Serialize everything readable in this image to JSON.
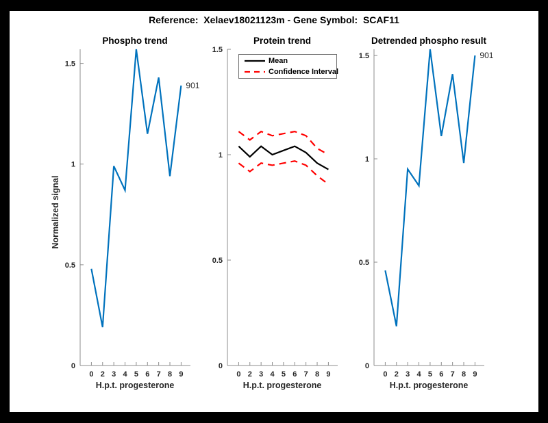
{
  "figure": {
    "title": "Reference:  Xelaev18021123m - Gene Symbol:  SCAF11",
    "background_color": "#ffffff",
    "frame_color": "#000000",
    "spine_color": "#8c8c8c",
    "text_color": "#262626"
  },
  "chart_data": [
    {
      "type": "line",
      "title": "Phospho trend",
      "xlabel": "H.p.t. progesterone",
      "ylabel": "Normalized signal",
      "categories": [
        "0",
        "2",
        "3",
        "4",
        "5",
        "6",
        "7",
        "8",
        "9"
      ],
      "yticks": [
        0,
        0.5,
        1,
        1.5
      ],
      "ylim": [
        0,
        1.57
      ],
      "grid": false,
      "end_label": "901",
      "series": [
        {
          "name": "901",
          "color": "#0072BD",
          "style": "solid",
          "values": [
            0.48,
            0.19,
            0.99,
            0.87,
            1.57,
            1.15,
            1.43,
            0.94,
            1.39
          ]
        }
      ]
    },
    {
      "type": "line",
      "title": "Protein trend",
      "xlabel": "H.p.t. progesterone",
      "ylabel": "",
      "categories": [
        "0",
        "2",
        "3",
        "4",
        "5",
        "6",
        "7",
        "8",
        "9"
      ],
      "yticks": [
        0,
        0.5,
        1,
        1.5
      ],
      "ylim": [
        0,
        1.5
      ],
      "grid": false,
      "legend": [
        "Mean",
        "Confidence Interval"
      ],
      "legend_position": "top-left",
      "series": [
        {
          "name": "Mean",
          "color": "#000000",
          "style": "solid",
          "values": [
            1.04,
            0.99,
            1.04,
            1.0,
            1.02,
            1.04,
            1.01,
            0.96,
            0.93
          ]
        },
        {
          "name": "Confidence Interval (upper)",
          "color": "#ff0000",
          "style": "dashed",
          "values": [
            1.11,
            1.07,
            1.11,
            1.09,
            1.1,
            1.11,
            1.09,
            1.03,
            1.0
          ]
        },
        {
          "name": "Confidence Interval (lower)",
          "color": "#ff0000",
          "style": "dashed",
          "values": [
            0.96,
            0.92,
            0.96,
            0.95,
            0.96,
            0.97,
            0.95,
            0.9,
            0.86
          ]
        }
      ]
    },
    {
      "type": "line",
      "title": "Detrended phospho result",
      "xlabel": "H.p.t. progesterone",
      "ylabel": "",
      "categories": [
        "0",
        "2",
        "3",
        "4",
        "5",
        "6",
        "7",
        "8",
        "9"
      ],
      "yticks": [
        0,
        0.5,
        1,
        1.5
      ],
      "ylim": [
        0,
        1.53
      ],
      "grid": false,
      "end_label": "901",
      "series": [
        {
          "name": "901",
          "color": "#0072BD",
          "style": "solid",
          "values": [
            0.46,
            0.19,
            0.95,
            0.87,
            1.53,
            1.11,
            1.41,
            0.98,
            1.5
          ]
        }
      ]
    }
  ]
}
